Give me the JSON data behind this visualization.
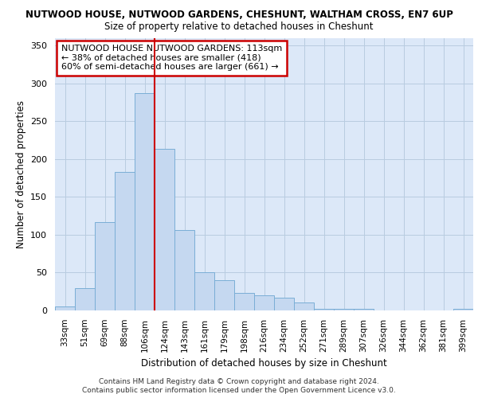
{
  "title1": "NUTWOOD HOUSE, NUTWOOD GARDENS, CHESHUNT, WALTHAM CROSS, EN7 6UP",
  "title2": "Size of property relative to detached houses in Cheshunt",
  "xlabel": "Distribution of detached houses by size in Cheshunt",
  "ylabel": "Number of detached properties",
  "footnote1": "Contains HM Land Registry data © Crown copyright and database right 2024.",
  "footnote2": "Contains public sector information licensed under the Open Government Licence v3.0.",
  "annotation_line1": "NUTWOOD HOUSE NUTWOOD GARDENS: 113sqm",
  "annotation_line2": "← 38% of detached houses are smaller (418)",
  "annotation_line3": "60% of semi-detached houses are larger (661) →",
  "bin_labels": [
    "33sqm",
    "51sqm",
    "69sqm",
    "88sqm",
    "106sqm",
    "124sqm",
    "143sqm",
    "161sqm",
    "179sqm",
    "198sqm",
    "216sqm",
    "234sqm",
    "252sqm",
    "271sqm",
    "289sqm",
    "307sqm",
    "326sqm",
    "344sqm",
    "362sqm",
    "381sqm",
    "399sqm"
  ],
  "bar_heights": [
    5,
    29,
    117,
    183,
    287,
    213,
    106,
    50,
    40,
    23,
    20,
    17,
    10,
    2,
    2,
    2,
    0,
    0,
    0,
    0,
    2
  ],
  "bar_color": "#c5d8f0",
  "bar_edge_color": "#7aaed6",
  "vline_color": "#cc0000",
  "bg_color": "#dce8f8",
  "fig_bg_color": "#ffffff",
  "annotation_box_color": "#ffffff",
  "annotation_border_color": "#cc0000",
  "ylim": [
    0,
    360
  ],
  "yticks": [
    0,
    50,
    100,
    150,
    200,
    250,
    300,
    350
  ],
  "vline_x": 4.5
}
